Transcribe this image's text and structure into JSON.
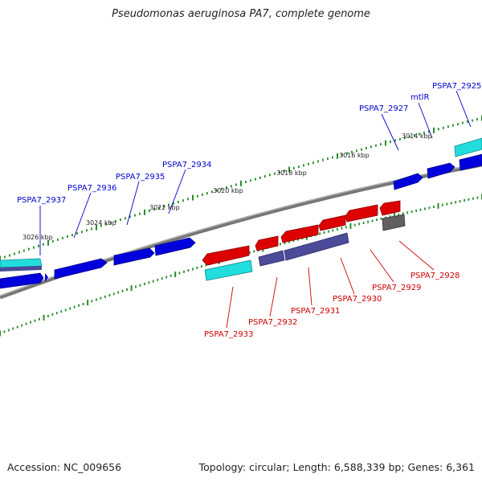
{
  "title": "Pseudomonas aeruginosa PA7, complete genome",
  "footer": {
    "accession": "Accession: NC_009656",
    "summary": "Topology: circular; Length: 6,588,339 bp; Genes: 6,361"
  },
  "colors": {
    "backbone": "#8a8a8a",
    "forward_gene": "#0000dd",
    "reverse_gene": "#dd0000",
    "rna_feature": "#22dddd",
    "other_feature": "#4b4b99",
    "ruler": "#2a8a2a",
    "forward_label": "#0000cc",
    "reverse_label": "#cc0000"
  },
  "ruler_labels": [
    "3026 kbp",
    "3024 kbp",
    "3022 kbp",
    "3020 kbp",
    "3018 kbp",
    "3016 kbp",
    "3014 kbp"
  ],
  "forward_labels": [
    "PSPA7_2937",
    "PSPA7_2936",
    "PSPA7_2935",
    "PSPA7_2934",
    "PSPA7_2927",
    "mtlR",
    "PSPA7_2925"
  ],
  "reverse_labels": [
    "PSPA7_2933",
    "PSPA7_2932",
    "PSPA7_2931",
    "PSPA7_2930",
    "PSPA7_2929",
    "PSPA7_2928"
  ]
}
